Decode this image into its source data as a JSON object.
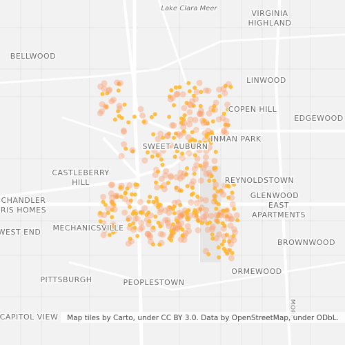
{
  "map": {
    "labels": [
      {
        "lines": [
          "Lake Clara Meer"
        ],
        "kind": "water"
      },
      {
        "lines": [
          "VIRGINIA",
          "HIGHLAND"
        ]
      },
      {
        "lines": [
          "BELLWOOD"
        ]
      },
      {
        "lines": [
          "LINWOOD"
        ]
      },
      {
        "lines": [
          "COPEN HILL"
        ]
      },
      {
        "lines": [
          "EDGEWOOD"
        ]
      },
      {
        "lines": [
          "INMAN PARK"
        ]
      },
      {
        "lines": [
          "SWEET AUBURN"
        ]
      },
      {
        "lines": [
          "CASTLEBERRY",
          "HILL"
        ]
      },
      {
        "lines": [
          "REYNOLDSTOWN"
        ]
      },
      {
        "lines": [
          "GLENWOOD"
        ]
      },
      {
        "lines": [
          "EAST",
          "APARTMENTS"
        ]
      },
      {
        "lines": [
          "CHANDLER",
          "RIS HOMES"
        ]
      },
      {
        "lines": [
          "MECHANICSVILLE"
        ]
      },
      {
        "lines": [
          "WEST END"
        ]
      },
      {
        "lines": [
          "BROWNWOOD"
        ]
      },
      {
        "lines": [
          "ORMEWOOD"
        ]
      },
      {
        "lines": [
          "PITTSBURGH"
        ]
      },
      {
        "lines": [
          "PEOPLESTOWN"
        ]
      },
      {
        "lines": [
          "CAPITOL VIEW"
        ]
      },
      {
        "lines": [
          "MORE"
        ],
        "kind": "street"
      }
    ],
    "attribution": "Map tiles by Carto, under CC BY 3.0. Data by OpenStreetMap, under ODbL."
  }
}
